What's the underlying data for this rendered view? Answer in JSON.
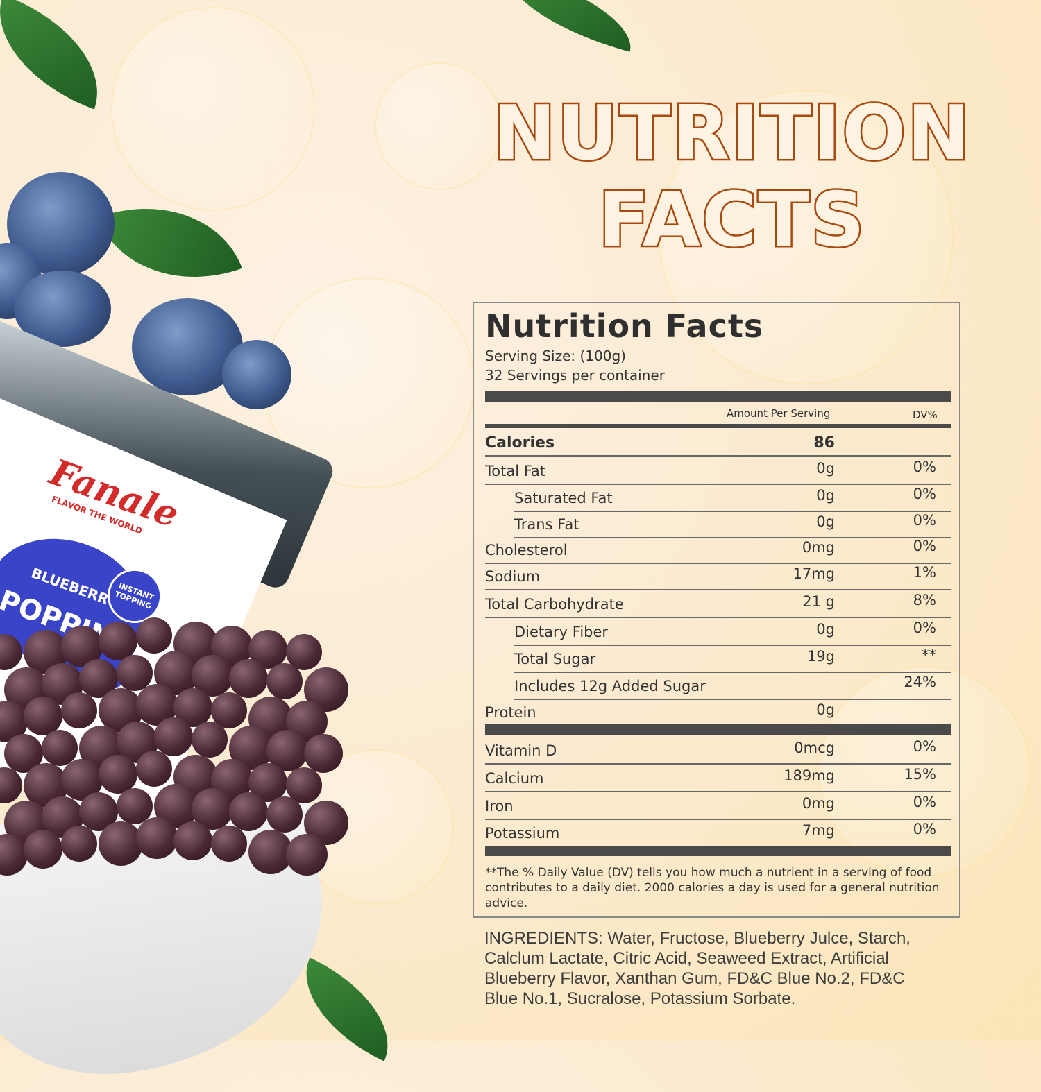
{
  "headline": {
    "line1": "NUTRITION",
    "line2": "FACTS"
  },
  "product": {
    "brand": "Fanale",
    "tagline": "FLAVOR THE WORLD",
    "flavor": "BLUEBERRY",
    "name": "POPPIN",
    "badge": "INSTANT TOPPING",
    "colors": {
      "brand": "#d32a2a",
      "label_blue": "#3a44c9"
    }
  },
  "label": {
    "title": "Nutrition Facts",
    "serving_size": "Serving Size:  (100g)",
    "servings": "32 Servings per container",
    "col_amount": "Amount Per Serving",
    "col_dv": "DV%",
    "calories": {
      "name": "Calories",
      "amount": "86"
    },
    "rows": [
      {
        "name": "Total Fat",
        "amount": "0g",
        "dv": "0%",
        "indent": false
      },
      {
        "name": "Saturated Fat",
        "amount": "0g",
        "dv": "0%",
        "indent": true
      },
      {
        "name": "Trans Fat",
        "amount": "0g",
        "dv": "0%",
        "indent": true
      },
      {
        "name": "Cholesterol",
        "amount": "0mg",
        "dv": "0%",
        "indent": false
      },
      {
        "name": "Sodium",
        "amount": "17mg",
        "dv": "1%",
        "indent": false
      },
      {
        "name": "Total Carbohydrate",
        "amount": "21 g",
        "dv": "8%",
        "indent": false
      },
      {
        "name": "Dietary Fiber",
        "amount": "0g",
        "dv": "0%",
        "indent": true
      },
      {
        "name": "Total Sugar",
        "amount": "19g",
        "dv": "**",
        "indent": true
      },
      {
        "name": "Includes 12g Added Sugar",
        "amount": "",
        "dv": "24%",
        "indent": true
      },
      {
        "name": "Protein",
        "amount": "0g",
        "dv": "",
        "indent": false
      }
    ],
    "vitamins": [
      {
        "name": "Vitamin D",
        "amount": "0mcg",
        "dv": "0%"
      },
      {
        "name": "Calcium",
        "amount": "189mg",
        "dv": "15%"
      },
      {
        "name": "Iron",
        "amount": "0mg",
        "dv": "0%"
      },
      {
        "name": "Potassium",
        "amount": "7mg",
        "dv": "0%"
      }
    ],
    "footnote": "**The % Daily Value (DV) tells you how much a nutrient in a serving of food contributes to a daily diet. 2000 calories a  day is used for a general nutrition advice."
  },
  "ingredients": "INGREDIENTS: Water, Fructose, Blueberry Julce, Starch, Calclum Lactate, Citric Acid, Seaweed Extract, Artificial Blueberry Flavor, Xanthan Gum, FD&C Blue No.2, FD&C Blue No.1, Sucralose, Potassium Sorbate.",
  "colors": {
    "headline_stroke": "#a8490f",
    "background": "#fcebd2"
  }
}
